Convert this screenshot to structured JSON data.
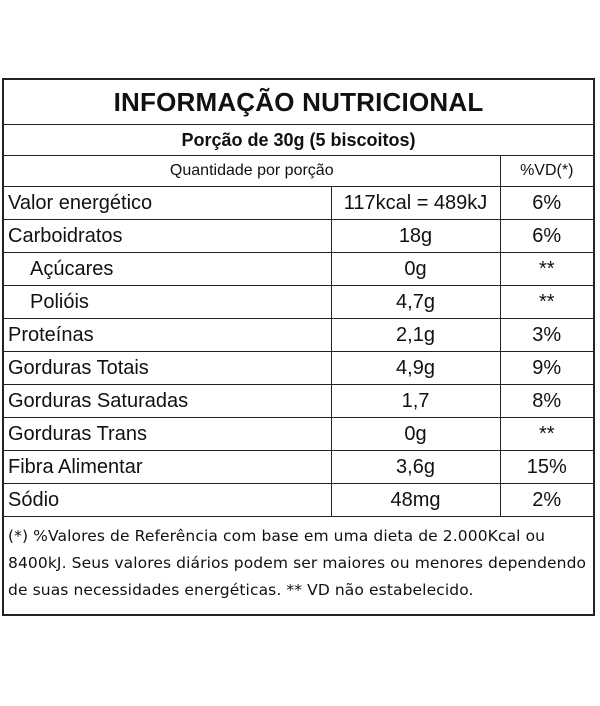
{
  "label": {
    "title": "INFORMAÇÃO NUTRICIONAL",
    "portion": "Porção de 30g (5 biscoitos)",
    "header": {
      "quantity": "Quantidade por porção",
      "vd": "%VD(*)"
    },
    "rows": [
      {
        "name": "Valor energético",
        "amount": "117kcal = 489kJ",
        "vd": "6%"
      },
      {
        "name": "Carboidratos",
        "amount": "18g",
        "vd": "6%"
      },
      {
        "name": "Açúcares",
        "amount": "0g",
        "vd": "**"
      },
      {
        "name": "Polióis",
        "amount": "4,7g",
        "vd": "**"
      },
      {
        "name": "Proteínas",
        "amount": "2,1g",
        "vd": "3%"
      },
      {
        "name": "Gorduras Totais",
        "amount": "4,9g",
        "vd": "9%"
      },
      {
        "name": "Gorduras Saturadas",
        "amount": "1,7",
        "vd": "8%"
      },
      {
        "name": "Gorduras Trans",
        "amount": "0g",
        "vd": "**"
      },
      {
        "name": "Fibra Alimentar",
        "amount": "3,6g",
        "vd": "15%"
      },
      {
        "name": "Sódio",
        "amount": "48mg",
        "vd": "2%"
      }
    ],
    "footnote": "(*) %Valores de Referência com base em uma dieta de 2.000Kcal ou 8400kJ. Seus valores diários podem ser maiores ou menores dependendo de suas necessidades energéticas. ** VD não estabelecido."
  }
}
